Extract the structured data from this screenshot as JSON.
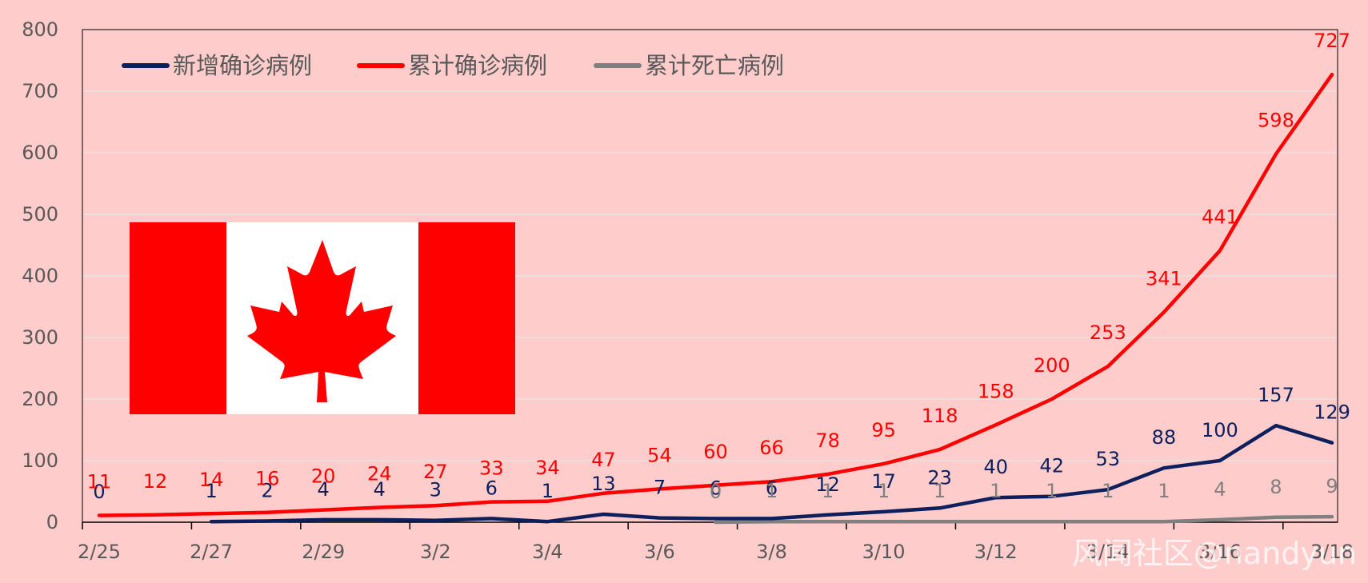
{
  "chart_data": {
    "type": "line",
    "categories": [
      "2/25",
      "2/26",
      "2/27",
      "2/28",
      "2/29",
      "3/1",
      "3/2",
      "3/3",
      "3/4",
      "3/5",
      "3/6",
      "3/7",
      "3/8",
      "3/9",
      "3/10",
      "3/11",
      "3/12",
      "3/13",
      "3/14",
      "3/15",
      "3/16",
      "3/17",
      "3/18"
    ],
    "x_tick_labels": [
      "2/25",
      "2/27",
      "2/29",
      "3/2",
      "3/4",
      "3/6",
      "3/8",
      "3/10",
      "3/12",
      "3/14",
      "3/16",
      "3/18"
    ],
    "ylim": [
      0,
      800
    ],
    "y_ticks": [
      0,
      100,
      200,
      300,
      400,
      500,
      600,
      700,
      800
    ],
    "grid": true,
    "legend_position": "top-left",
    "series": [
      {
        "name": "新增确诊病例",
        "color": "#0D1F5C",
        "values": [
          0,
          null,
          1,
          2,
          4,
          4,
          3,
          6,
          1,
          13,
          7,
          6,
          6,
          12,
          17,
          23,
          40,
          42,
          53,
          88,
          100,
          157,
          129
        ]
      },
      {
        "name": "累计确诊病例",
        "color": "#FF0000",
        "values": [
          11,
          12,
          14,
          16,
          20,
          24,
          27,
          33,
          34,
          47,
          54,
          60,
          66,
          78,
          95,
          118,
          158,
          200,
          253,
          341,
          441,
          598,
          727
        ]
      },
      {
        "name": "累计死亡病例",
        "color": "#808080",
        "values": [
          null,
          null,
          null,
          null,
          null,
          null,
          null,
          null,
          null,
          null,
          null,
          0,
          1,
          1,
          1,
          1,
          1,
          1,
          1,
          1,
          4,
          8,
          9
        ]
      }
    ]
  },
  "watermark": "风闻社区@nandyun"
}
